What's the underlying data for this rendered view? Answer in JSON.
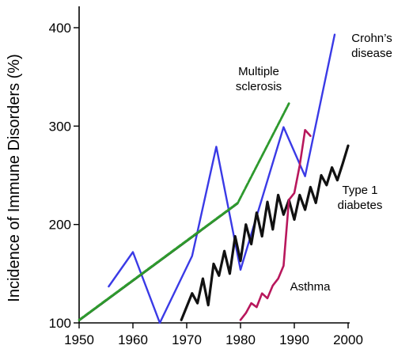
{
  "chart_data": {
    "type": "line",
    "title": "",
    "xlabel": "",
    "ylabel": "Incidence of Immune Disorders (%)",
    "xlim": [
      1950,
      2000
    ],
    "ylim": [
      100,
      400
    ],
    "x_ticks": [
      "1950",
      "1960",
      "1970",
      "1980",
      "1990",
      "2000"
    ],
    "y_ticks": [
      "100",
      "200",
      "300",
      "400"
    ],
    "grid": false,
    "series": [
      {
        "name": "Crohn's disease",
        "label_lines": [
          "Crohn’s",
          "disease"
        ],
        "color": "#3a3ae6",
        "x": [
          1955.5,
          1960,
          1965,
          1971,
          1975.5,
          1980,
          1988,
          1992,
          1997.5
        ],
        "y": [
          137,
          172,
          100,
          168,
          279,
          154,
          299,
          249,
          393
        ]
      },
      {
        "name": "Multiple sclerosis",
        "label_lines": [
          "Multiple",
          "sclerosis"
        ],
        "color": "#2e9a2e",
        "x": [
          1950,
          1979.5,
          1989
        ],
        "y": [
          103,
          222,
          323
        ]
      },
      {
        "name": "Type 1 diabetes",
        "label_lines": [
          "Type 1",
          "diabetes"
        ],
        "color": "#111111",
        "x": [
          1969,
          1971,
          1972,
          1973,
          1974,
          1975,
          1976,
          1977,
          1978,
          1979,
          1980,
          1981,
          1982,
          1983,
          1984,
          1985,
          1986,
          1987,
          1988,
          1989,
          1990,
          1991,
          1992,
          1993,
          1994,
          1995,
          1996,
          1997,
          1998,
          1999,
          2000
        ],
        "y": [
          103,
          130,
          120,
          145,
          118,
          160,
          148,
          173,
          150,
          188,
          163,
          200,
          180,
          212,
          188,
          223,
          195,
          230,
          210,
          225,
          205,
          230,
          215,
          238,
          222,
          250,
          240,
          258,
          245,
          262,
          280
        ]
      },
      {
        "name": "Asthma",
        "label_lines": [
          "Asthma"
        ],
        "color": "#b8175c",
        "x": [
          1980,
          1981,
          1982,
          1983,
          1984,
          1985,
          1986,
          1987,
          1988,
          1989,
          1990,
          1991,
          1992,
          1993
        ],
        "y": [
          103,
          110,
          120,
          116,
          130,
          125,
          138,
          145,
          158,
          225,
          232,
          260,
          296,
          290
        ]
      }
    ]
  }
}
